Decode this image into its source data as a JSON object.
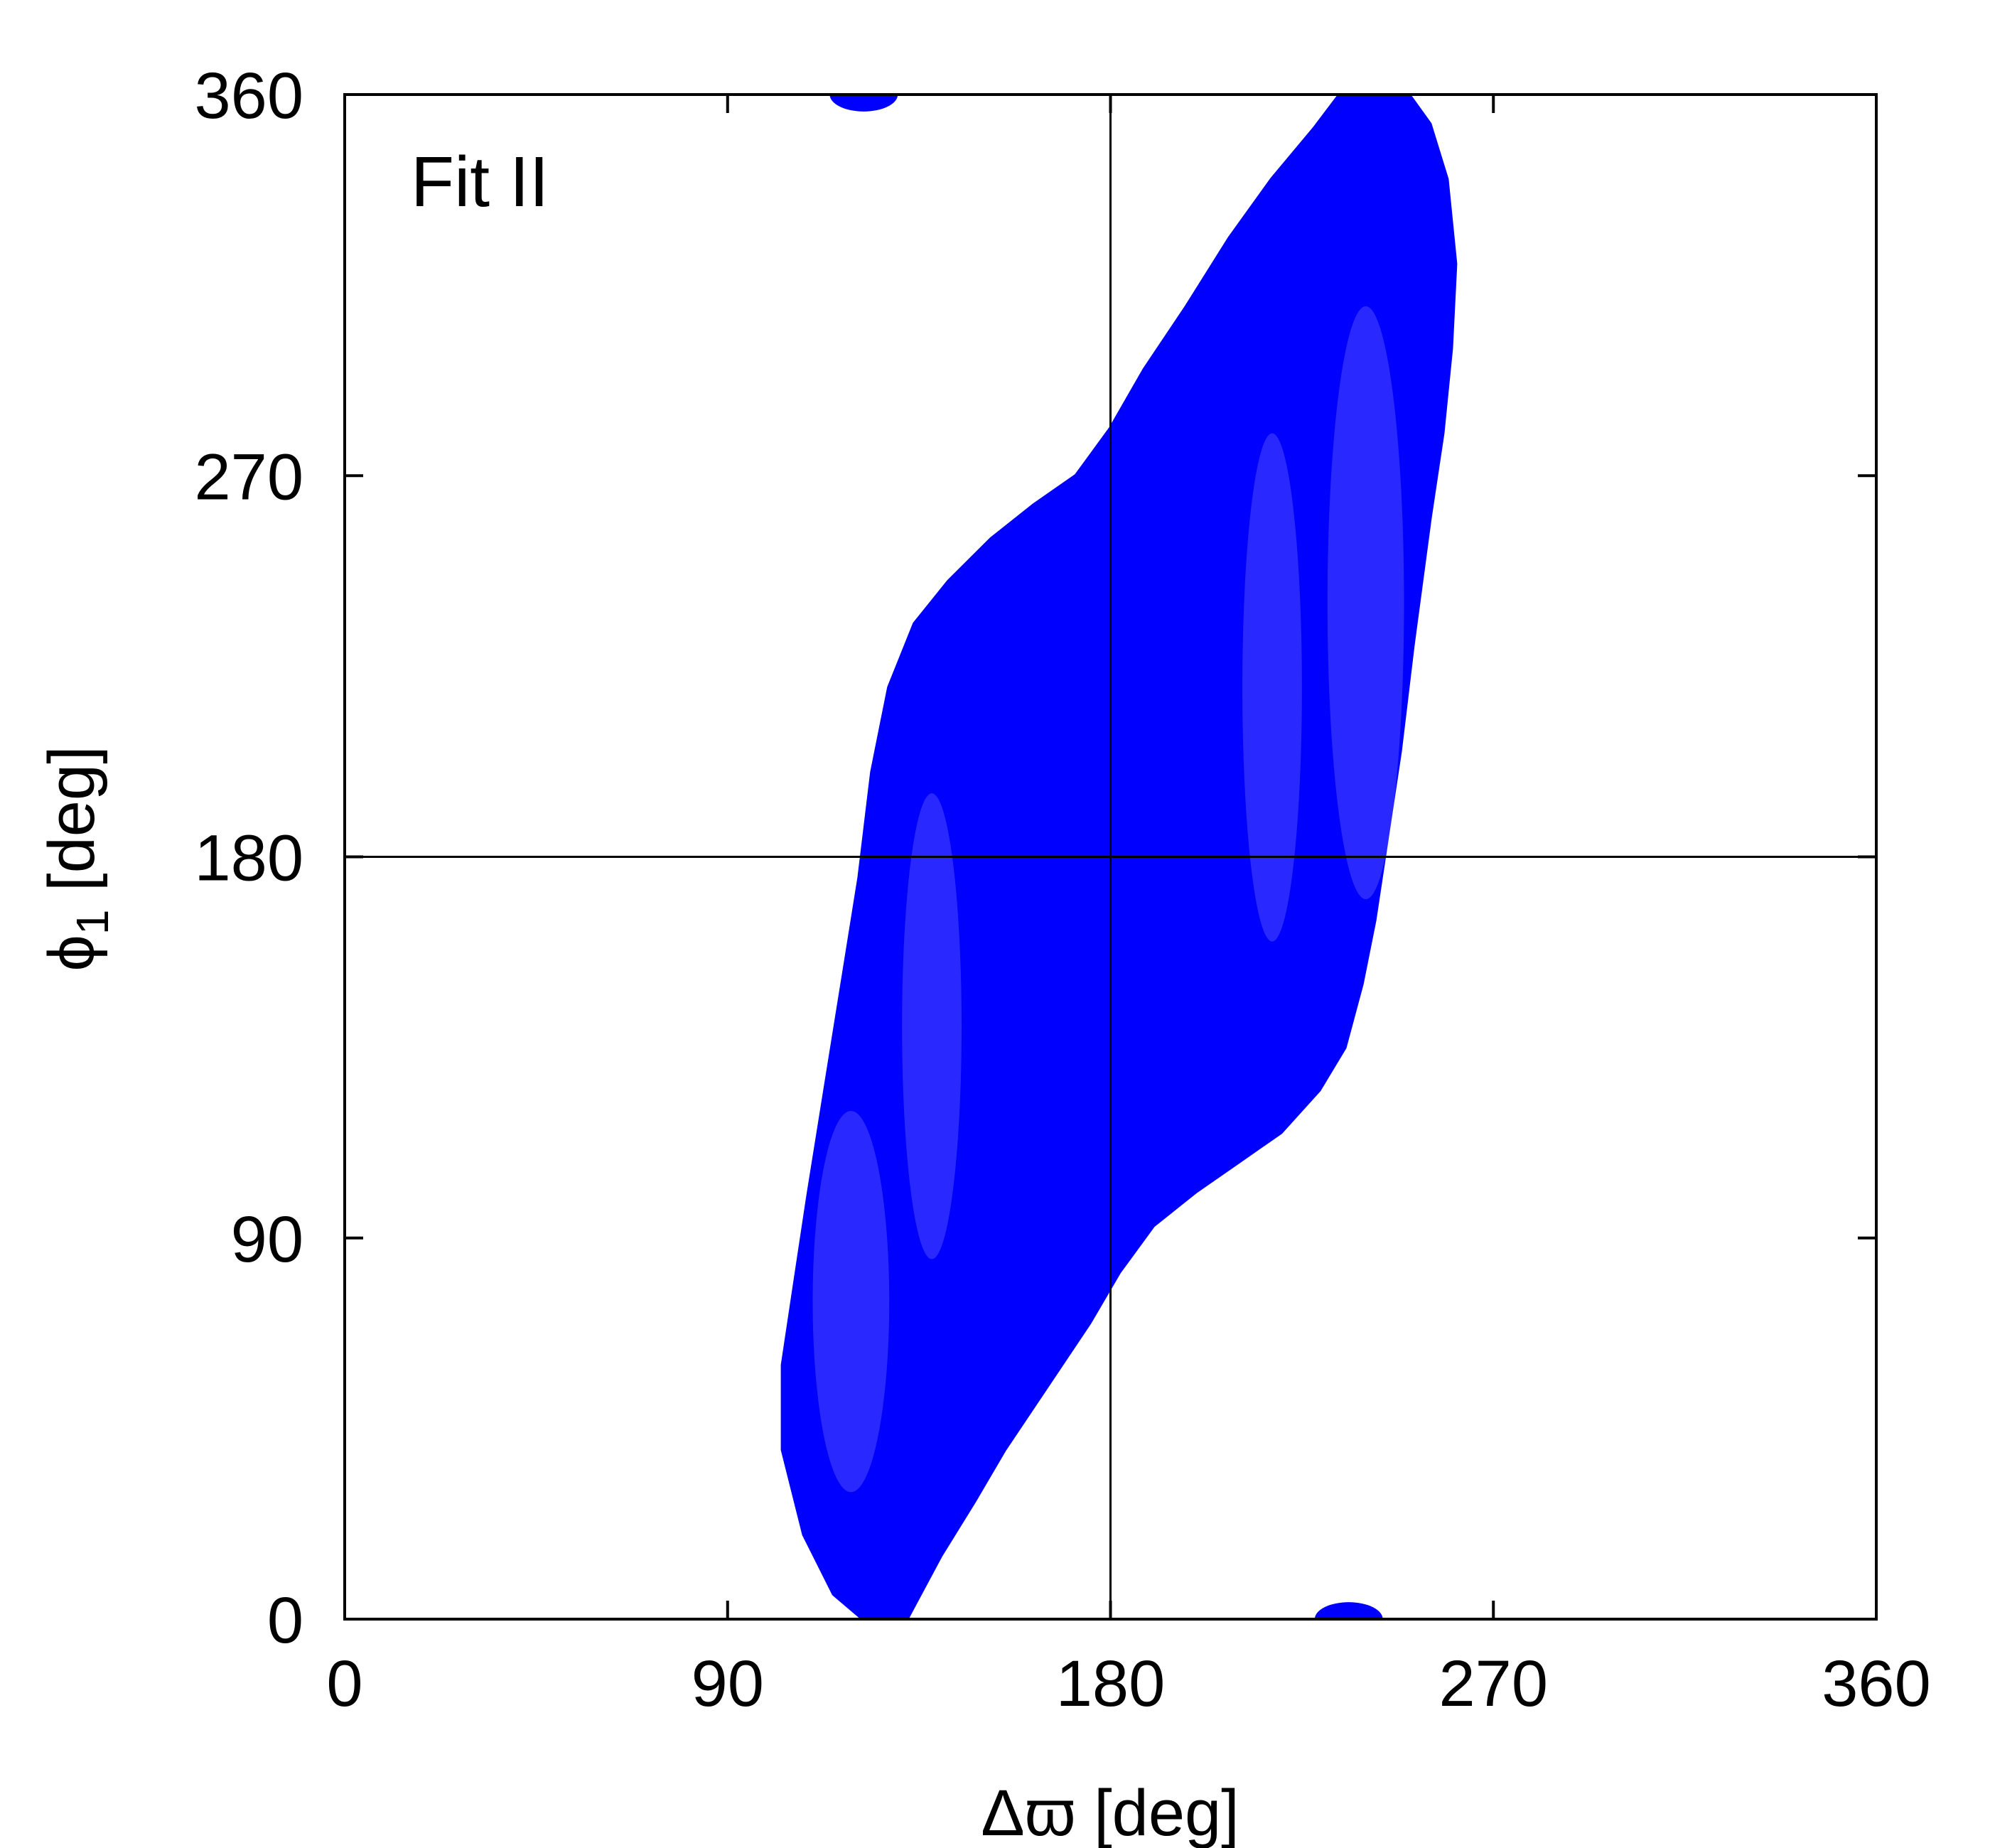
{
  "chart_data": {
    "type": "scatter",
    "annotation": "Fit II",
    "xlabel": "Δϖ [deg]",
    "ylabel_main": "ϕ",
    "ylabel_sub": "1",
    "ylabel_rest": " [deg]",
    "xlim": [
      0,
      360
    ],
    "ylim": [
      0,
      360
    ],
    "xticks": [
      0,
      90,
      180,
      270,
      360
    ],
    "yticks": [
      0,
      90,
      180,
      270,
      360
    ],
    "xtick_labels": [
      "0",
      "90",
      "180",
      "270",
      "360"
    ],
    "ytick_labels": [
      "0",
      "90",
      "180",
      "270",
      "360"
    ],
    "reference_lines": {
      "x": 180,
      "y": 180
    },
    "grid": false,
    "point_color": "#0000ff",
    "series": [
      {
        "regions": [
          {
            "region": "main",
            "boundary": [
              [
                122,
                0
              ],
              [
                115,
                6
              ],
              [
                108,
                20
              ],
              [
                103,
                40
              ],
              [
                103,
                60
              ],
              [
                106,
                80
              ],
              [
                109,
                100
              ],
              [
                113,
                125
              ],
              [
                117,
                150
              ],
              [
                121,
                175
              ],
              [
                124,
                200
              ],
              [
                128,
                220
              ],
              [
                134,
                235
              ],
              [
                142,
                245
              ],
              [
                152,
                255
              ],
              [
                162,
                263
              ],
              [
                172,
                270
              ],
              [
                180,
                281
              ],
              [
                188,
                295
              ],
              [
                198,
                310
              ],
              [
                208,
                326
              ],
              [
                218,
                340
              ],
              [
                228,
                352
              ],
              [
                234,
                360
              ],
              [
                250,
                360
              ],
              [
                255,
                353
              ],
              [
                259,
                340
              ],
              [
                261,
                320
              ],
              [
                260,
                300
              ],
              [
                258,
                280
              ],
              [
                255,
                260
              ],
              [
                251,
                230
              ],
              [
                248,
                205
              ],
              [
                245,
                185
              ],
              [
                242,
                165
              ],
              [
                239,
                150
              ],
              [
                235,
                135
              ],
              [
                229,
                125
              ],
              [
                220,
                115
              ],
              [
                210,
                108
              ],
              [
                200,
                101
              ],
              [
                190,
                93
              ],
              [
                182,
                82
              ],
              [
                175,
                70
              ],
              [
                165,
                55
              ],
              [
                155,
                40
              ],
              [
                148,
                28
              ],
              [
                140,
                15
              ],
              [
                132,
                0
              ]
            ]
          },
          {
            "region": "top-cap",
            "cx": 122,
            "cy": 360,
            "rx": 8,
            "ry": 4
          },
          {
            "region": "bottom-cap",
            "cx": 236,
            "cy": 0,
            "rx": 8,
            "ry": 4
          }
        ],
        "lighter_bands": [
          {
            "cx": 119,
            "cy": 75,
            "rx": 9,
            "ry": 45
          },
          {
            "cx": 138,
            "cy": 140,
            "rx": 7,
            "ry": 55
          },
          {
            "cx": 240,
            "cy": 240,
            "rx": 9,
            "ry": 70
          },
          {
            "cx": 218,
            "cy": 220,
            "rx": 7,
            "ry": 60
          }
        ]
      }
    ]
  }
}
